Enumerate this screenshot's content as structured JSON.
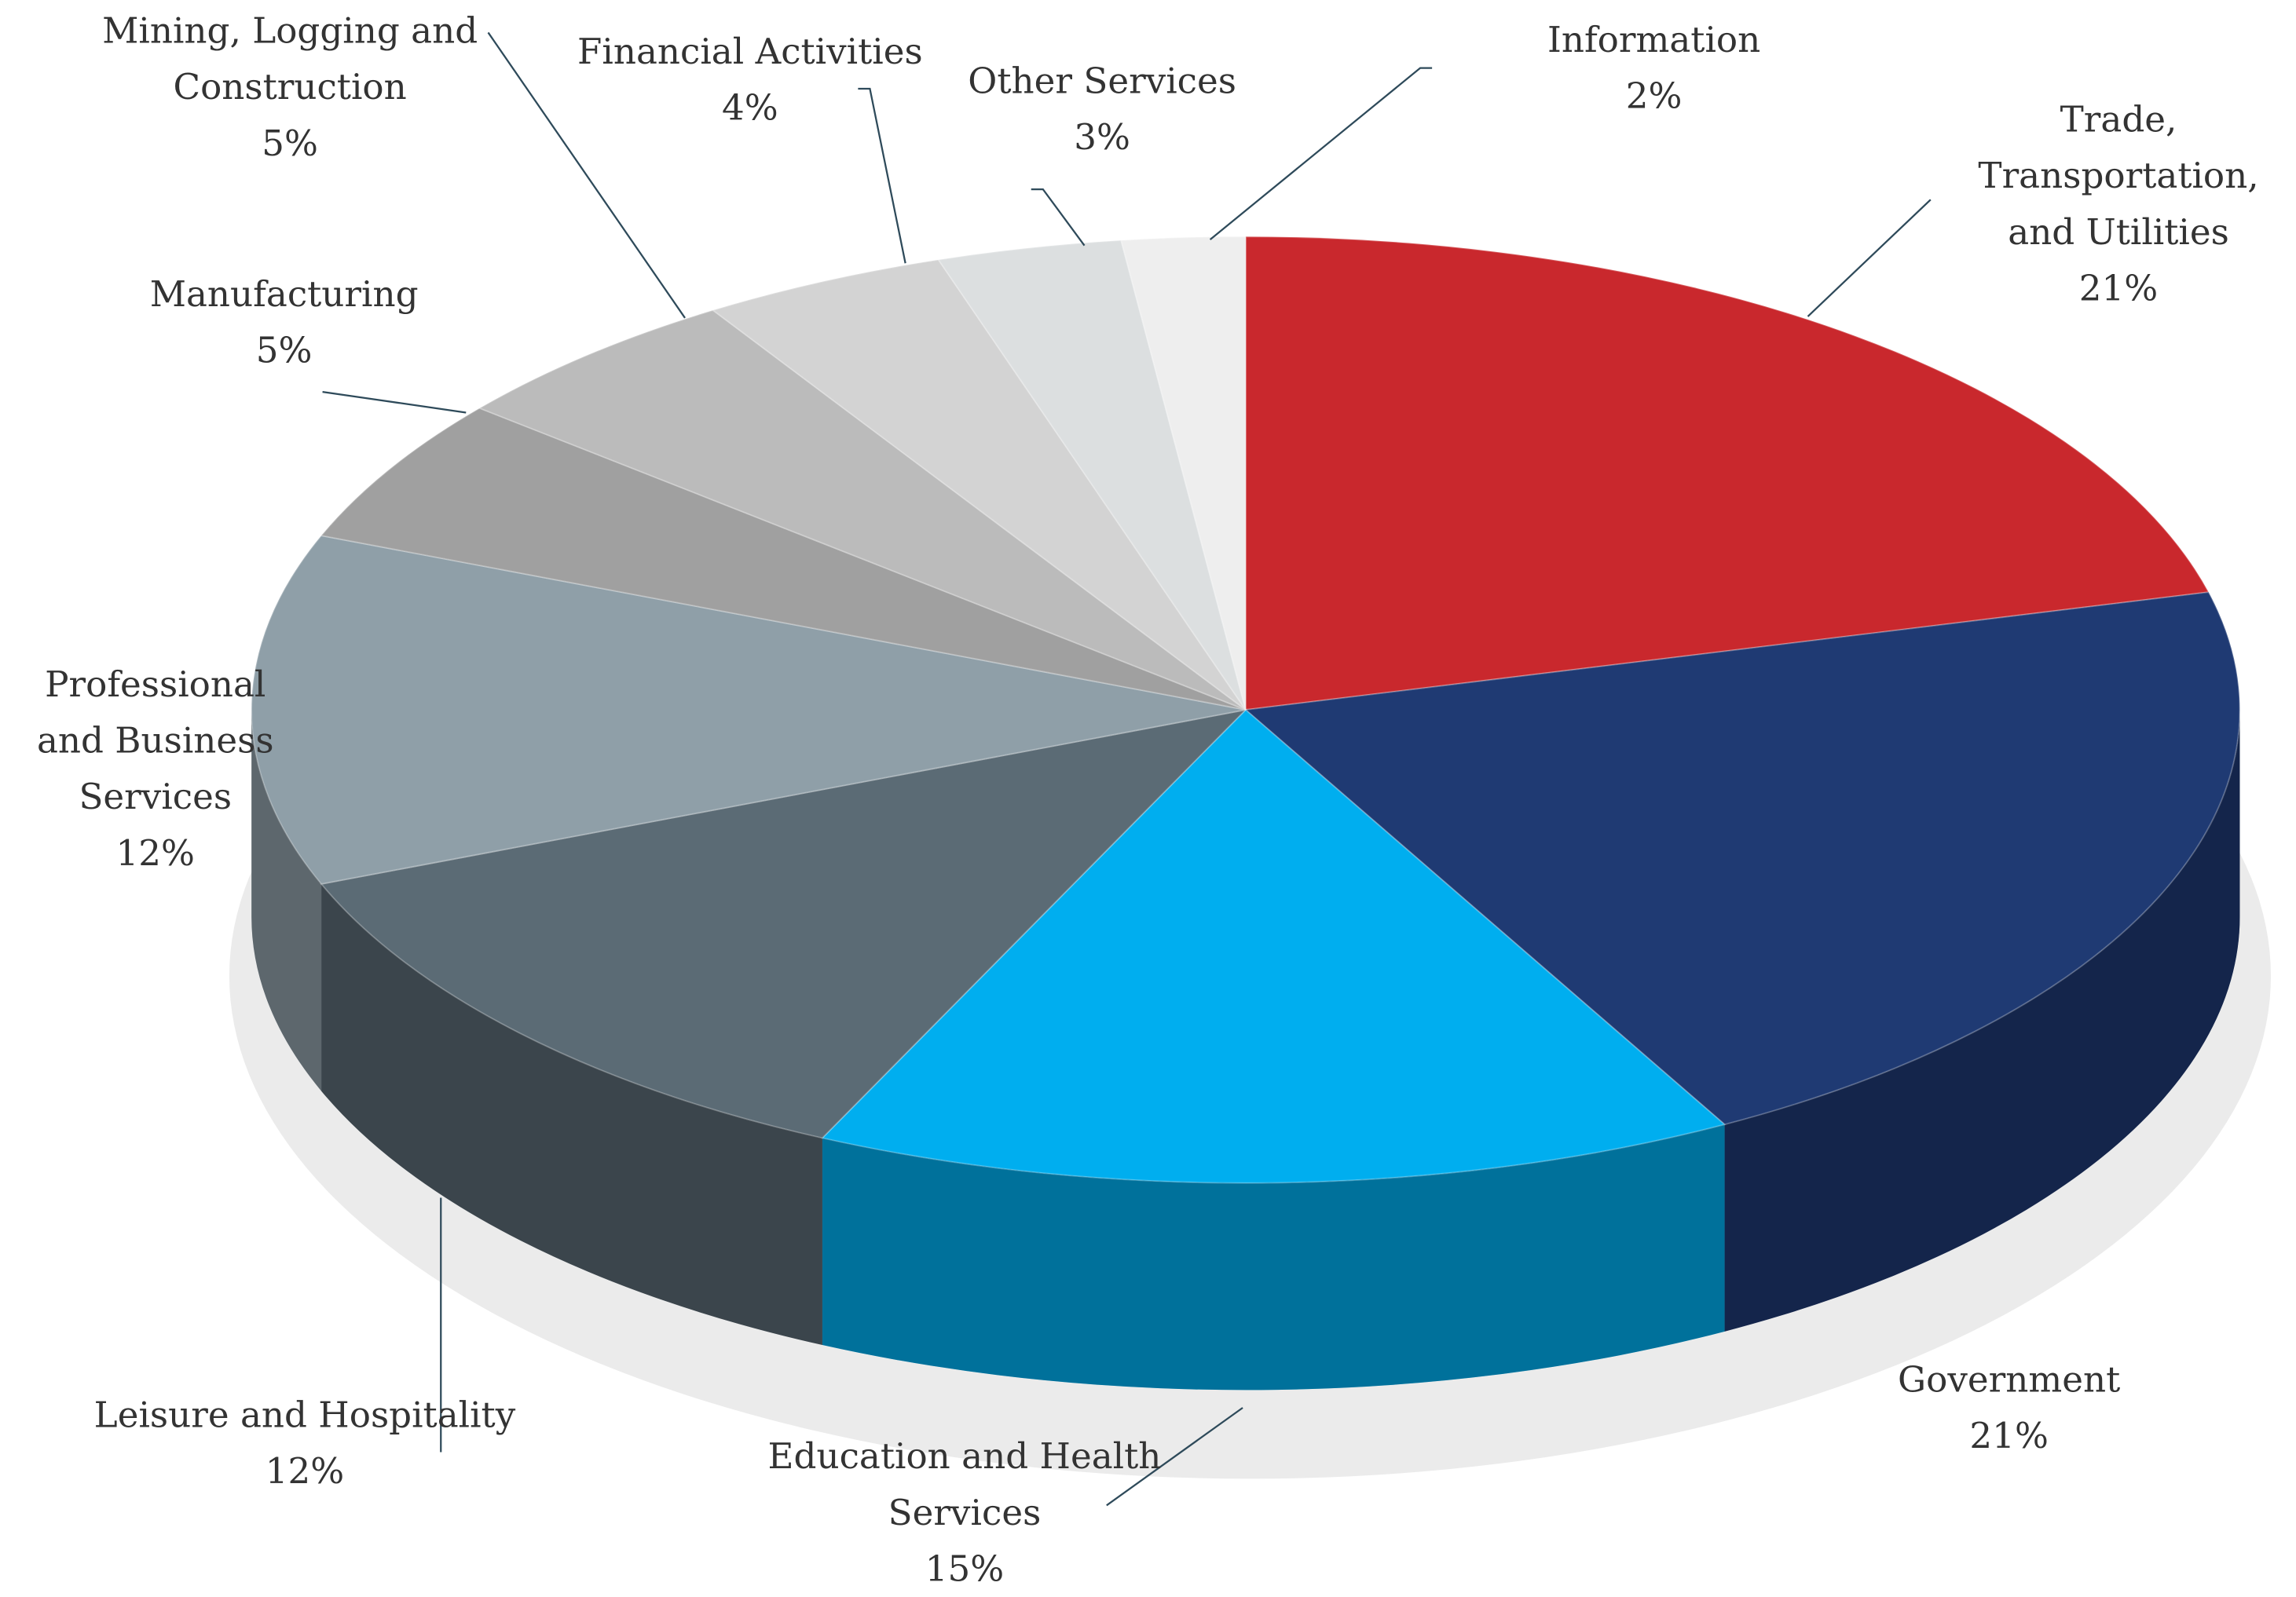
{
  "chart_data": {
    "type": "pie",
    "categories": [
      "Trade, Transportation, and Utilities",
      "Government",
      "Education and Health Services",
      "Leisure and Hospitality",
      "Professional and Business Services",
      "Manufacturing",
      "Mining, Logging and Construction",
      "Financial Activities",
      "Other Services",
      "Information"
    ],
    "values": [
      21,
      21,
      15,
      12,
      12,
      5,
      5,
      4,
      3,
      2
    ],
    "value_labels": [
      "21%",
      "21%",
      "15%",
      "12%",
      "12%",
      "5%",
      "5%",
      "4%",
      "3%",
      "2%"
    ],
    "colors": [
      "#c9282d",
      "#1f3a73",
      "#00aeef",
      "#5b6b75",
      "#8f9fa8",
      "#a0a0a0",
      "#bbbbbb",
      "#d3d3d3",
      "#dcdfe0",
      "#eeeeee"
    ]
  }
}
